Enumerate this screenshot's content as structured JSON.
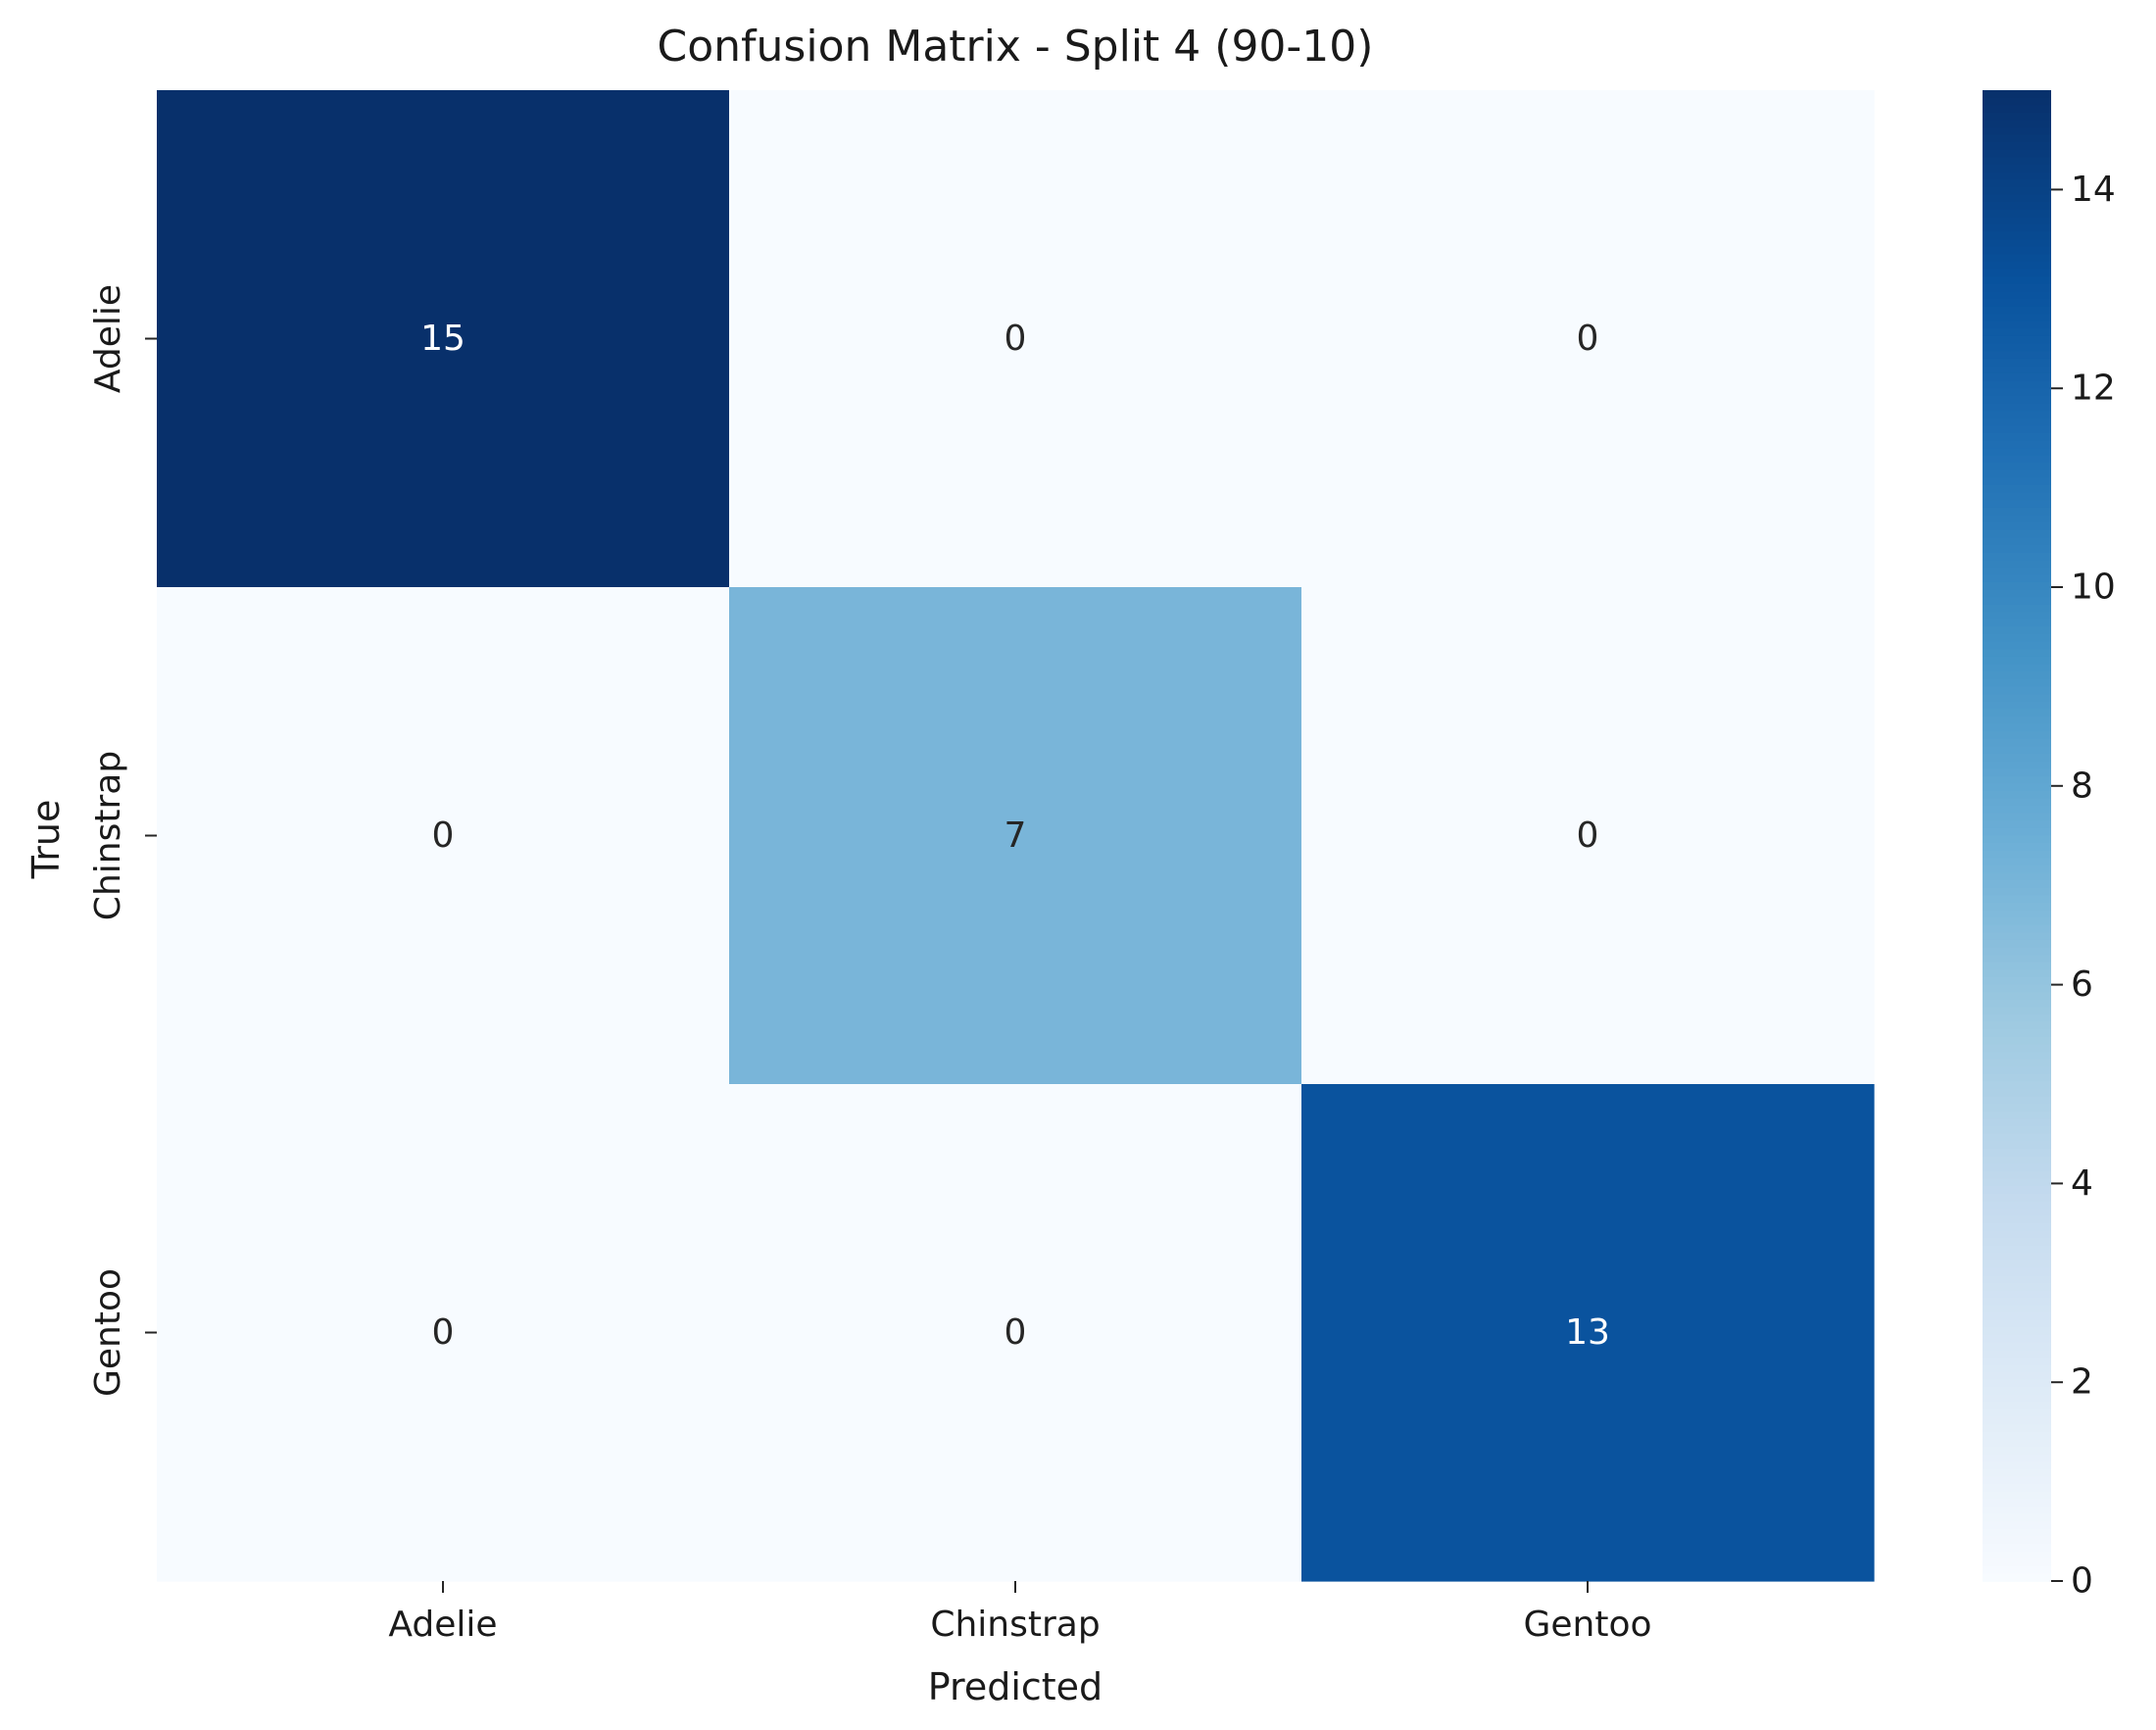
{
  "chart_data": {
    "type": "heatmap",
    "title": "Confusion Matrix - Split 4 (90-10)",
    "xlabel": "Predicted",
    "ylabel": "True",
    "x_categories": [
      "Adelie",
      "Chinstrap",
      "Gentoo"
    ],
    "y_categories": [
      "Adelie",
      "Chinstrap",
      "Gentoo"
    ],
    "values": [
      [
        15,
        0,
        0
      ],
      [
        0,
        7,
        0
      ],
      [
        0,
        0,
        13
      ]
    ],
    "colormap": "Blues",
    "color_range": [
      0,
      15
    ],
    "colorbar_ticks": [
      0,
      2,
      4,
      6,
      8,
      10,
      12,
      14
    ],
    "annotations": true,
    "grid": false,
    "legend": "colorbar-right"
  }
}
